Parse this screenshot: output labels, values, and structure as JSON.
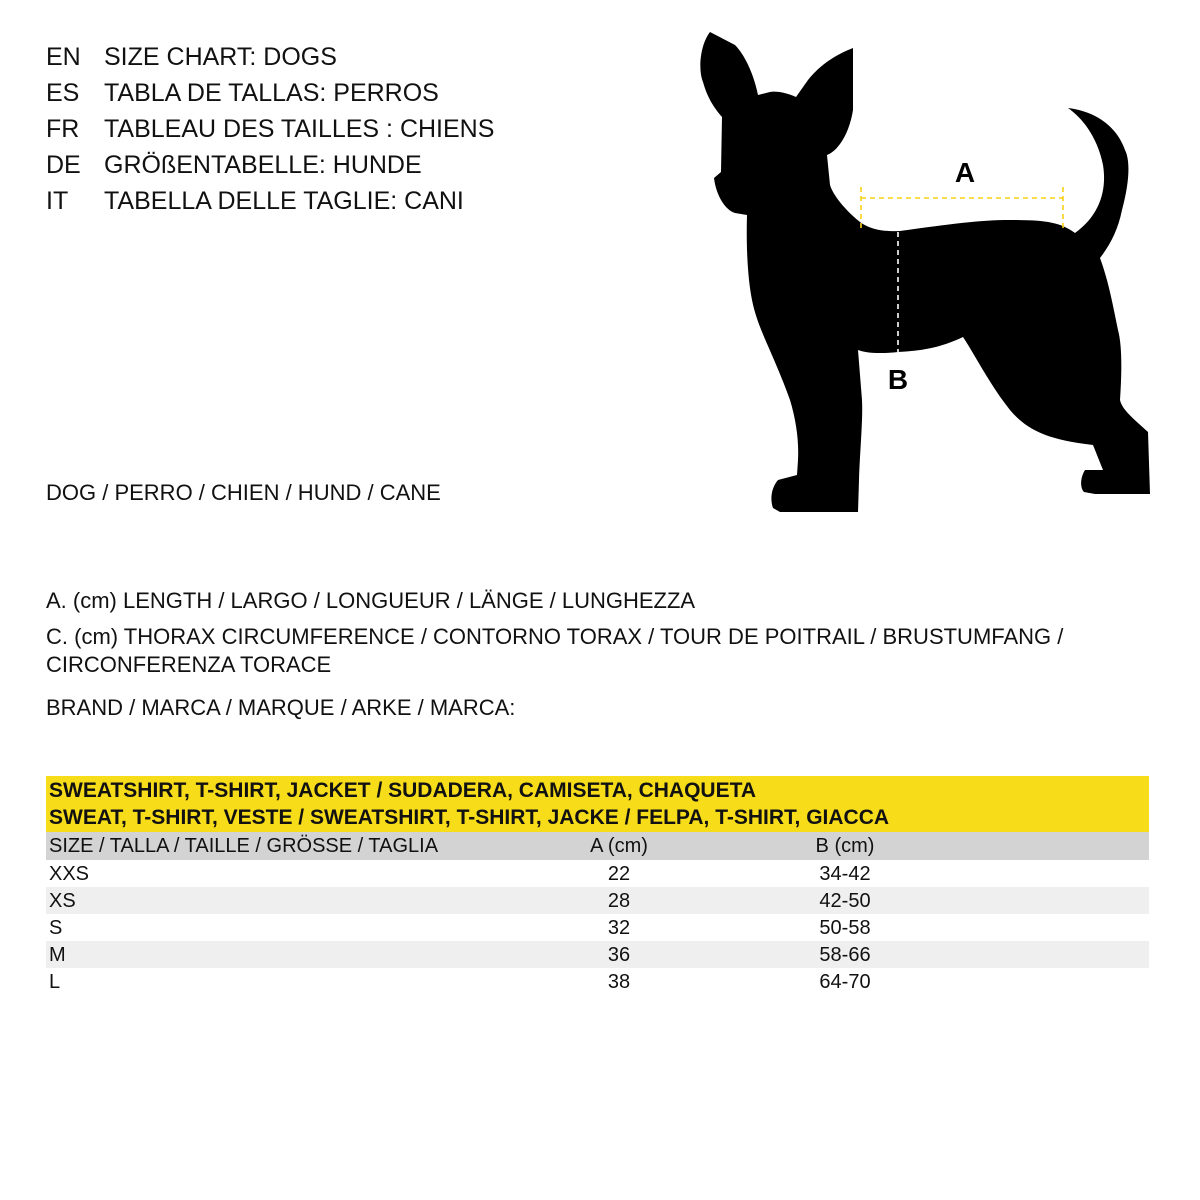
{
  "titles": [
    {
      "code": "EN",
      "text": "SIZE CHART: DOGS"
    },
    {
      "code": "ES",
      "text": "TABLA DE TALLAS: PERROS"
    },
    {
      "code": "FR",
      "text": "TABLEAU DES TAILLES : CHIENS"
    },
    {
      "code": "DE",
      "text": "GRÖßENTABELLE: HUNDE"
    },
    {
      "code": "IT",
      "text": "TABELLA DELLE TAGLIE: CANI"
    }
  ],
  "animal_label": "DOG / PERRO / CHIEN / HUND / CANE",
  "legend": {
    "a": "A. (cm) LENGTH / LARGO / LONGUEUR / LÄNGE / LUNGHEZZA",
    "c": "C. (cm) THORAX CIRCUMFERENCE / CONTORNO TORAX / TOUR DE POITRAIL / BRUSTUMFANG / CIRCONFERENZA TORACE"
  },
  "brand_label": "BRAND / MARCA / MARQUE / ARKE / MARCA:",
  "diagram": {
    "label_a": "A",
    "label_b": "B",
    "colors": {
      "silhouette": "#000000",
      "line_a": "#f7d117",
      "line_b": "#ffffff"
    }
  },
  "table": {
    "title_line1": "SWEATSHIRT, T-SHIRT, JACKET / SUDADERA, CAMISETA, CHAQUETA",
    "title_line2": "SWEAT, T-SHIRT, VESTE / SWEATSHIRT, T-SHIRT, JACKE / FELPA, T-SHIRT, GIACCA",
    "columns": [
      "SIZE / TALLA / TAILLE / GRÖSSE / TAGLIA",
      "A (cm)",
      "B (cm)"
    ],
    "rows": [
      [
        "XXS",
        "22",
        "34-42"
      ],
      [
        "XS",
        "28",
        "42-50"
      ],
      [
        "S",
        "32",
        "50-58"
      ],
      [
        "M",
        "36",
        "58-66"
      ],
      [
        "L",
        "38",
        "64-70"
      ]
    ],
    "colors": {
      "title_bg": "#f7dc1a",
      "header_bg": "#d3d3d3",
      "alt_row_bg": "#efefef"
    }
  }
}
